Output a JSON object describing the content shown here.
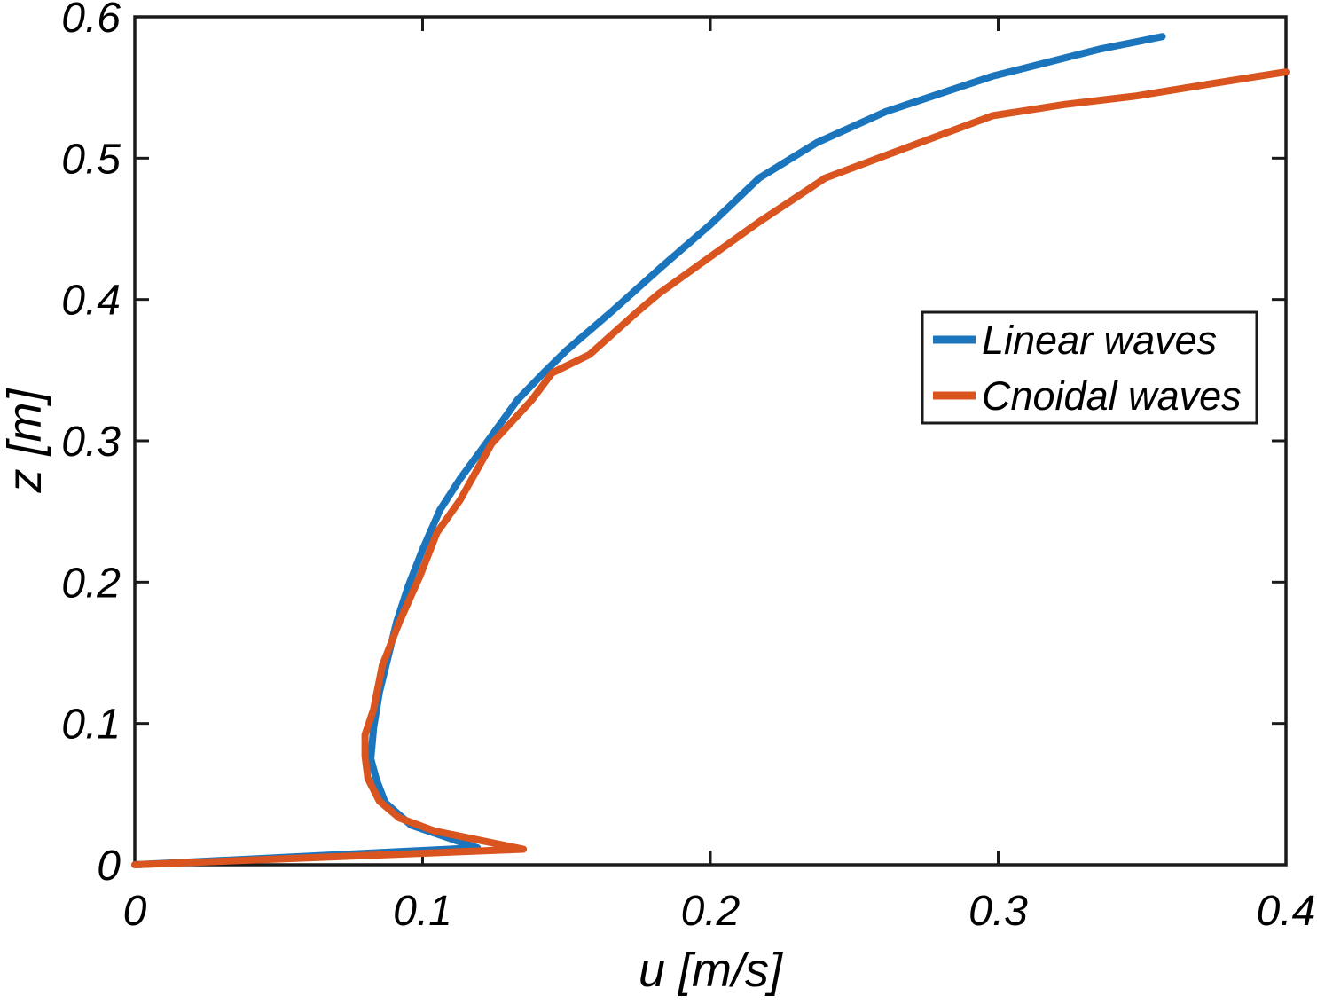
{
  "figure": {
    "background": "#ffffff",
    "axis_color": "#1a1a1a",
    "text_color": "#000000"
  },
  "chart_data": {
    "type": "line",
    "title": "",
    "xlabel": "u [m/s]",
    "ylabel": "z [m]",
    "xlim": [
      0,
      0.4
    ],
    "ylim": [
      0,
      0.6
    ],
    "xticks": [
      0,
      0.1,
      0.2,
      0.3,
      0.4
    ],
    "xtick_labels": [
      "0",
      "0.1",
      "0.2",
      "0.3",
      "0.4"
    ],
    "yticks": [
      0,
      0.1,
      0.2,
      0.3,
      0.4,
      0.5,
      0.6
    ],
    "ytick_labels": [
      "0",
      "0.1",
      "0.2",
      "0.3",
      "0.4",
      "0.5",
      "0.6"
    ],
    "grid": false,
    "box": true,
    "legend": {
      "position": "upper-right-inside",
      "border": true,
      "entries": [
        "Linear waves",
        "Cnoidal waves"
      ]
    },
    "series": [
      {
        "name": "Linear waves",
        "color": "#1B75BD",
        "line_width": 8,
        "points": [
          [
            0.0,
            0.0
          ],
          [
            0.119,
            0.012
          ],
          [
            0.096,
            0.028
          ],
          [
            0.087,
            0.044
          ],
          [
            0.084,
            0.06
          ],
          [
            0.082,
            0.075
          ],
          [
            0.083,
            0.097
          ],
          [
            0.085,
            0.122
          ],
          [
            0.088,
            0.147
          ],
          [
            0.091,
            0.172
          ],
          [
            0.095,
            0.197
          ],
          [
            0.1,
            0.223
          ],
          [
            0.106,
            0.251
          ],
          [
            0.113,
            0.273
          ],
          [
            0.122,
            0.298
          ],
          [
            0.133,
            0.329
          ],
          [
            0.142,
            0.348
          ],
          [
            0.15,
            0.364
          ],
          [
            0.166,
            0.392
          ],
          [
            0.183,
            0.423
          ],
          [
            0.2,
            0.453
          ],
          [
            0.217,
            0.486
          ],
          [
            0.237,
            0.511
          ],
          [
            0.261,
            0.533
          ],
          [
            0.298,
            0.558
          ],
          [
            0.335,
            0.577
          ],
          [
            0.357,
            0.586
          ]
        ]
      },
      {
        "name": "Cnoidal waves",
        "color": "#D9541E",
        "line_width": 8,
        "points": [
          [
            0.0,
            0.0
          ],
          [
            0.135,
            0.011
          ],
          [
            0.104,
            0.024
          ],
          [
            0.092,
            0.033
          ],
          [
            0.085,
            0.045
          ],
          [
            0.081,
            0.061
          ],
          [
            0.08,
            0.077
          ],
          [
            0.08,
            0.092
          ],
          [
            0.083,
            0.11
          ],
          [
            0.086,
            0.141
          ],
          [
            0.092,
            0.172
          ],
          [
            0.099,
            0.204
          ],
          [
            0.105,
            0.235
          ],
          [
            0.113,
            0.258
          ],
          [
            0.124,
            0.298
          ],
          [
            0.138,
            0.329
          ],
          [
            0.145,
            0.348
          ],
          [
            0.158,
            0.361
          ],
          [
            0.175,
            0.392
          ],
          [
            0.182,
            0.404
          ],
          [
            0.195,
            0.423
          ],
          [
            0.217,
            0.455
          ],
          [
            0.24,
            0.486
          ],
          [
            0.261,
            0.502
          ],
          [
            0.298,
            0.53
          ],
          [
            0.323,
            0.538
          ],
          [
            0.348,
            0.544
          ],
          [
            0.375,
            0.553
          ],
          [
            0.4,
            0.561
          ]
        ]
      }
    ]
  }
}
